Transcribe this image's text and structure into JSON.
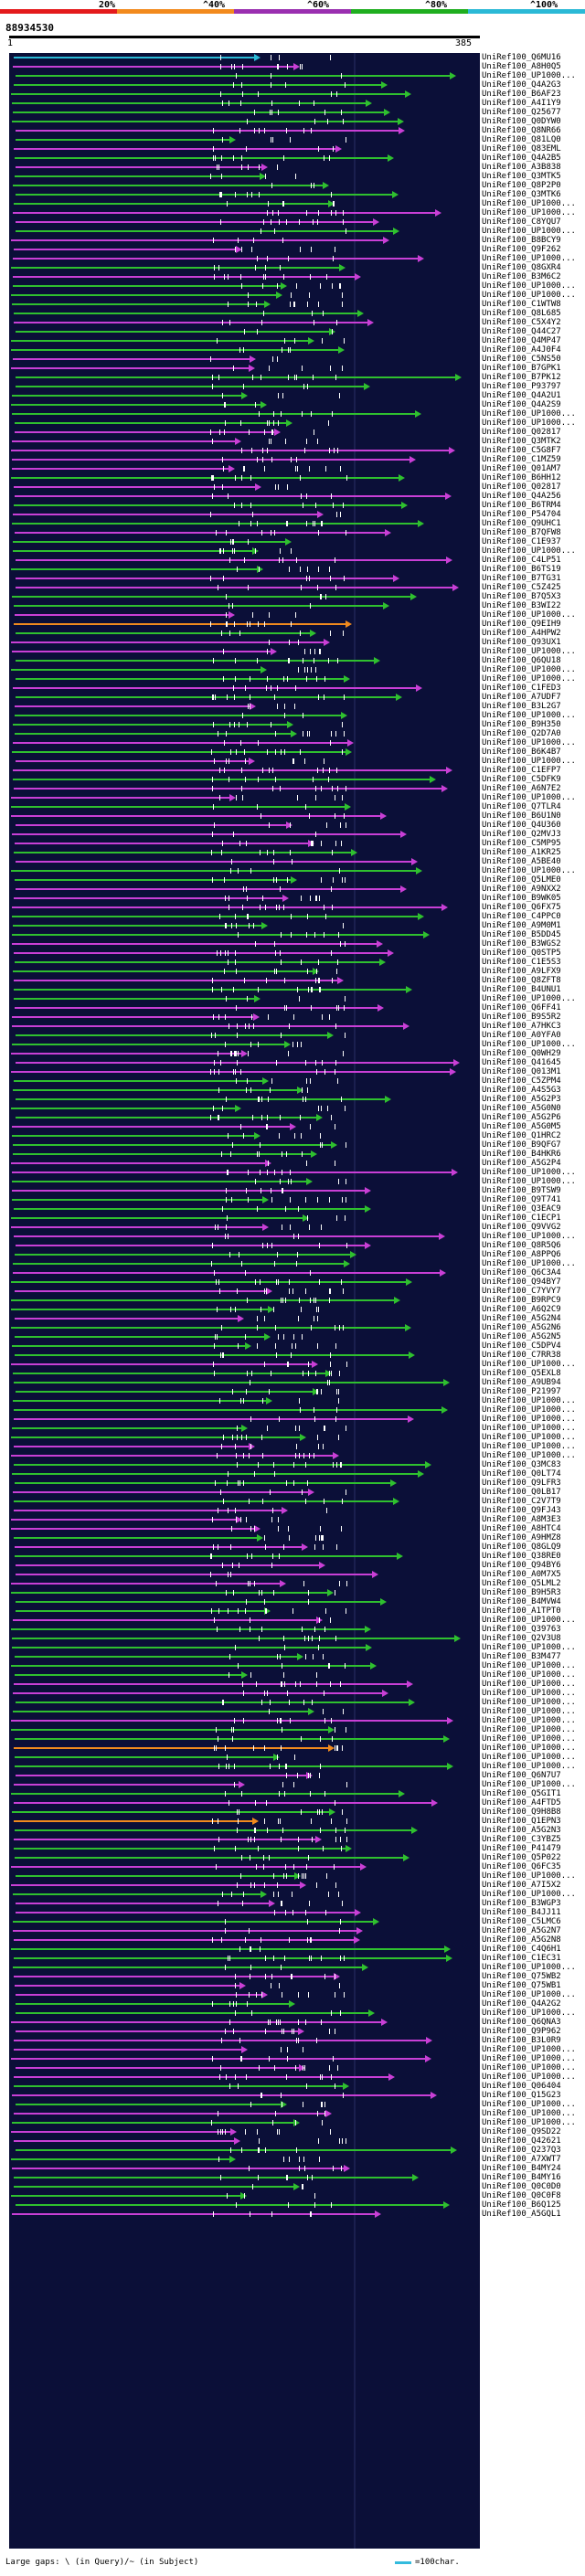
{
  "legend": {
    "labels": [
      "20%",
      "^40%",
      "^60%",
      "^80%",
      "^100%"
    ],
    "colors": [
      "#e41a1c",
      "#f28a1e",
      "#9a2fb0",
      "#1fae1f",
      "#2bb9d6"
    ]
  },
  "query_id": "88934530",
  "ruler": {
    "start": "1",
    "end": "385"
  },
  "hits": [
    "UniRef100_Q6MU16",
    "UniRef100_A8H0Q5",
    "UniRef100_UP1000...",
    "UniRef100_Q4A2G3",
    "UniRef100_B6AF23",
    "UniRef100_A4I1Y9",
    "UniRef100_Q25677",
    "UniRef100_Q0DYW0",
    "UniRef100_Q8NR66",
    "UniRef100_Q81LQ0",
    "UniRef100_Q83EML",
    "UniRef100_Q4A2B5",
    "UniRef100_A3B838",
    "UniRef100_Q3MTK5",
    "UniRef100_Q8P2P0",
    "UniRef100_Q3MTK6",
    "UniRef100_UP1000...",
    "UniRef100_UP1000...",
    "UniRef100_C8YQU7",
    "UniRef100_UP1000...",
    "UniRef100_B8BCY9",
    "UniRef100_Q9F262",
    "UniRef100_UP1000...",
    "UniRef100_Q8GXR4",
    "UniRef100_B3M6C2",
    "UniRef100_UP1000...",
    "UniRef100_UP1000...",
    "UniRef100_C1WTW8",
    "UniRef100_Q8L685",
    "UniRef100_C5X4Y2",
    "UniRef100_Q44C27",
    "UniRef100_Q4MP47",
    "UniRef100_A4J0F4",
    "UniRef100_C5NS50",
    "UniRef100_B7GPK1",
    "UniRef100_B7PK12",
    "UniRef100_P93797",
    "UniRef100_Q4A2U1",
    "UniRef100_Q4A2S9",
    "UniRef100_UP1000...",
    "UniRef100_UP1000...",
    "UniRef100_Q02817",
    "UniRef100_Q3MTK2",
    "UniRef100_C5G8F7",
    "UniRef100_C1MZ59",
    "UniRef100_Q01AM7",
    "UniRef100_B6HH12",
    "UniRef100_Q02817",
    "UniRef100_Q4A256",
    "UniRef100_B6TRM4",
    "UniRef100_P54704",
    "UniRef100_Q9UHC1",
    "UniRef100_B7QFW8",
    "UniRef100_C1E937",
    "UniRef100_UP1000...",
    "UniRef100_C4LP51",
    "UniRef100_B6TS19",
    "UniRef100_B7TG31",
    "UniRef100_C5Z425",
    "UniRef100_B7Q5X3",
    "UniRef100_B3WI22",
    "UniRef100_UP1000...",
    "UniRef100_Q9EIH9",
    "UniRef100_A4HPW2",
    "UniRef100_Q93UX1",
    "UniRef100_UP1000...",
    "UniRef100_Q6QU18",
    "UniRef100_UP1000...",
    "UniRef100_UP1000...",
    "UniRef100_C1FED3",
    "UniRef100_A7UDF7",
    "UniRef100_B3L2G7",
    "UniRef100_UP1000...",
    "UniRef100_B9H350",
    "UniRef100_Q2D7A0",
    "UniRef100_UP1000...",
    "UniRef100_B6K4B7",
    "UniRef100_UP1000...",
    "UniRef100_C1EFP7",
    "UniRef100_C5DFK9",
    "UniRef100_A6N7E2",
    "UniRef100_UP1000...",
    "UniRef100_Q7TLR4",
    "UniRef100_B6U1N0",
    "UniRef100_Q4U360",
    "UniRef100_Q2MVJ3",
    "UniRef100_C5MP95",
    "UniRef100_A1KR25",
    "UniRef100_A5BE40",
    "UniRef100_UP1000...",
    "UniRef100_Q5LME0",
    "UniRef100_A9NXX2",
    "UniRef100_B9WK05",
    "UniRef100_Q6FX75",
    "UniRef100_C4PPC0",
    "UniRef100_A9M0M1",
    "UniRef100_B5DD45",
    "UniRef100_B3WGS2",
    "UniRef100_Q0STP5",
    "UniRef100_C1E5S3",
    "UniRef100_A9LFX9",
    "UniRef100_Q8ZFT8",
    "UniRef100_B4UNU1",
    "UniRef100_UP1000...",
    "UniRef100_Q6FF41",
    "UniRef100_B9S5R2",
    "UniRef100_A7HKC3",
    "UniRef100_A0YFA0",
    "UniRef100_UP1000...",
    "UniRef100_Q0WH29",
    "UniRef100_Q41645",
    "UniRef100_Q013M1",
    "UniRef100_C5ZPM4",
    "UniRef100_A4S5G3",
    "UniRef100_A5G2P3",
    "UniRef100_A5G0N0",
    "UniRef100_A5G2P6",
    "UniRef100_A5G0M5",
    "UniRef100_Q1HRC2",
    "UniRef100_B9QFG7",
    "UniRef100_B4HKR6",
    "UniRef100_A5G2P4",
    "UniRef100_UP1000...",
    "UniRef100_UP1000...",
    "UniRef100_B9TSW9",
    "UniRef100_Q9T741",
    "UniRef100_Q3EAC9",
    "UniRef100_C1ECP1",
    "UniRef100_Q9VVG2",
    "UniRef100_UP1000...",
    "UniRef100_Q8R5Q6",
    "UniRef100_A8PPQ6",
    "UniRef100_UP1000...",
    "UniRef100_Q6C3A4",
    "UniRef100_Q94BY7",
    "UniRef100_C7YVY7",
    "UniRef100_B9RPC9",
    "UniRef100_A6Q2C9",
    "UniRef100_A5G2N4",
    "UniRef100_A5G2N6",
    "UniRef100_A5G2N5",
    "UniRef100_C5DPV4",
    "UniRef100_C7RR38",
    "UniRef100_UP1000...",
    "UniRef100_Q5EXL8",
    "UniRef100_A9UB94",
    "UniRef100_P21997",
    "UniRef100_UP1000...",
    "UniRef100_UP1000...",
    "UniRef100_UP1000...",
    "UniRef100_UP1000...",
    "UniRef100_UP1000...",
    "UniRef100_UP1000...",
    "UniRef100_UP1000...",
    "UniRef100_Q3MC83",
    "UniRef100_Q0LT74",
    "UniRef100_Q9LFR3",
    "UniRef100_Q0LB17",
    "UniRef100_C2V7T9",
    "UniRef100_Q9FJ43",
    "UniRef100_A8M3E3",
    "UniRef100_A8HTC4",
    "UniRef100_A9HMZ8",
    "UniRef100_Q8GLQ9",
    "UniRef100_Q38RE0",
    "UniRef100_Q94BY6",
    "UniRef100_A0M7X5",
    "UniRef100_Q5LML2",
    "UniRef100_B9H5R3",
    "UniRef100_B4MVW4",
    "UniRef100_A1TPT0",
    "UniRef100_UP1000...",
    "UniRef100_Q39763",
    "UniRef100_Q2V3U8",
    "UniRef100_UP1000...",
    "UniRef100_B3M477",
    "UniRef100_UP1000...",
    "UniRef100_UP1000...",
    "UniRef100_UP1000...",
    "UniRef100_UP1000...",
    "UniRef100_UP1000...",
    "UniRef100_UP1000...",
    "UniRef100_UP1000...",
    "UniRef100_UP1000...",
    "UniRef100_UP1000...",
    "UniRef100_UP1000...",
    "UniRef100_UP1000...",
    "UniRef100_UP1000...",
    "UniRef100_Q6N7U7",
    "UniRef100_UP1000...",
    "UniRef100_Q5GIT1",
    "UniRef100_A4FTD5",
    "UniRef100_Q9H8B8",
    "UniRef100_Q1EPN3",
    "UniRef100_A5G2N3",
    "UniRef100_C3YBZ5",
    "UniRef100_P41479",
    "UniRef100_Q5P022",
    "UniRef100_Q6FC35",
    "UniRef100_UP1000...",
    "UniRef100_A7I5X2",
    "UniRef100_UP1000...",
    "UniRef100_B3WGP3",
    "UniRef100_B4JJ11",
    "UniRef100_C5LMC6",
    "UniRef100_A5G2N7",
    "UniRef100_A5G2N8",
    "UniRef100_C4Q6H1",
    "UniRef100_C1EC31",
    "UniRef100_UP1000...",
    "UniRef100_Q75WB2",
    "UniRef100_Q75WB1",
    "UniRef100_UP1000...",
    "UniRef100_Q4A2G2",
    "UniRef100_UP1000...",
    "UniRef100_Q6QNA3",
    "UniRef100_Q9P962",
    "UniRef100_B3L0R9",
    "UniRef100_UP1000...",
    "UniRef100_UP1000...",
    "UniRef100_UP1000...",
    "UniRef100_UP1000...",
    "UniRef100_Q06404",
    "UniRef100_Q15G23",
    "UniRef100_UP1000...",
    "UniRef100_UP1000...",
    "UniRef100_UP1000...",
    "UniRef100_Q9SD22",
    "UniRef100_Q42621",
    "UniRef100_Q237Q3",
    "UniRef100_A7XWT7",
    "UniRef100_B4MY24",
    "UniRef100_B4MY16",
    "UniRef100_Q0C0D0",
    "UniRef100_Q0C0F8",
    "UniRef100_B6Q125",
    "UniRef100_A5GQL1"
  ],
  "gap_legend": "Large gaps: \\ (in Query)/~ (in Subject)",
  "scale_legend": "=100char."
}
